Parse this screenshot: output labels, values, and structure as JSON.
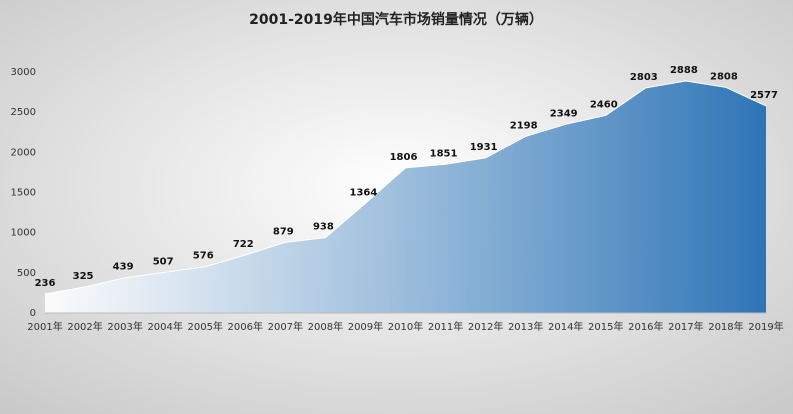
{
  "chart_data": {
    "type": "area",
    "title": "2001-2019年中国汽车市场销量情况（万辆）",
    "categories": [
      "2001年",
      "2002年",
      "2003年",
      "2004年",
      "2005年",
      "2006年",
      "2007年",
      "2008年",
      "2009年",
      "2010年",
      "2011年",
      "2012年",
      "2013年",
      "2014年",
      "2015年",
      "2016年",
      "2017年",
      "2018年",
      "2019年"
    ],
    "values": [
      236,
      325,
      439,
      507,
      576,
      722,
      879,
      938,
      1364,
      1806,
      1851,
      1931,
      2198,
      2349,
      2460,
      2803,
      2888,
      2808,
      2577
    ],
    "color": "#2e75b6",
    "ylim": [
      0,
      3000
    ],
    "yticks": [
      0,
      500,
      1000,
      1500,
      2000,
      2500,
      3000
    ],
    "grid": false
  }
}
